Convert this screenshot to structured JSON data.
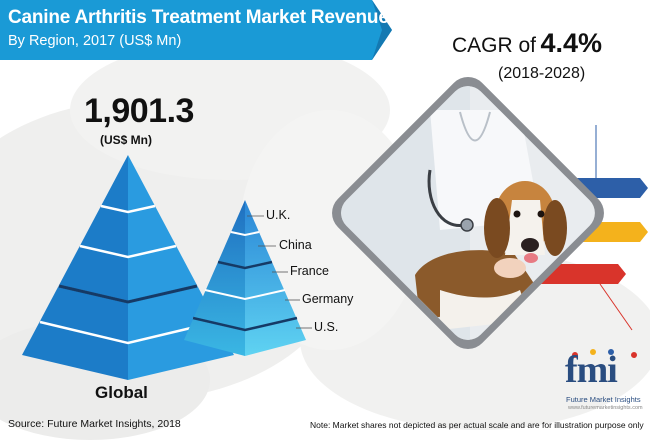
{
  "title": {
    "line1": "Canine Arthritis Treatment Market Revenue",
    "line2": "By Region, 2017 (US$ Mn)"
  },
  "cagr": {
    "label": "CAGR of",
    "value": "4.4%",
    "period": "(2018-2028)"
  },
  "global": {
    "value": "1,901.3",
    "unit": "(US$ Mn)",
    "label": "Global"
  },
  "footer": {
    "source": "Source: Future Market Insights, 2018",
    "note": "Note: Market shares not depicted as per actual scale and are for illustration purpose only"
  },
  "logo": {
    "text": "fmi",
    "name": "Future Market Insights",
    "url": "www.futuremarketinsights.com"
  },
  "colors": {
    "banner": "#1a9ad6",
    "global_pyramid": "#1c88d2",
    "region_pyramid_top": "#1f7fcf",
    "region_pyramid_bottom": "#45c9ec",
    "ribbon_blue": "#2d5fa8",
    "ribbon_gold": "#f4b21c",
    "ribbon_red": "#d9342b"
  },
  "chart_data": {
    "type": "pyramid",
    "title": "Canine Arthritis Treatment Market Revenue By Region, 2017 (US$ Mn)",
    "global_total": 1901.3,
    "unit": "US$ Mn",
    "categories": [
      "U.K.",
      "China",
      "France",
      "Germany",
      "U.S."
    ],
    "values_shown": false
  }
}
